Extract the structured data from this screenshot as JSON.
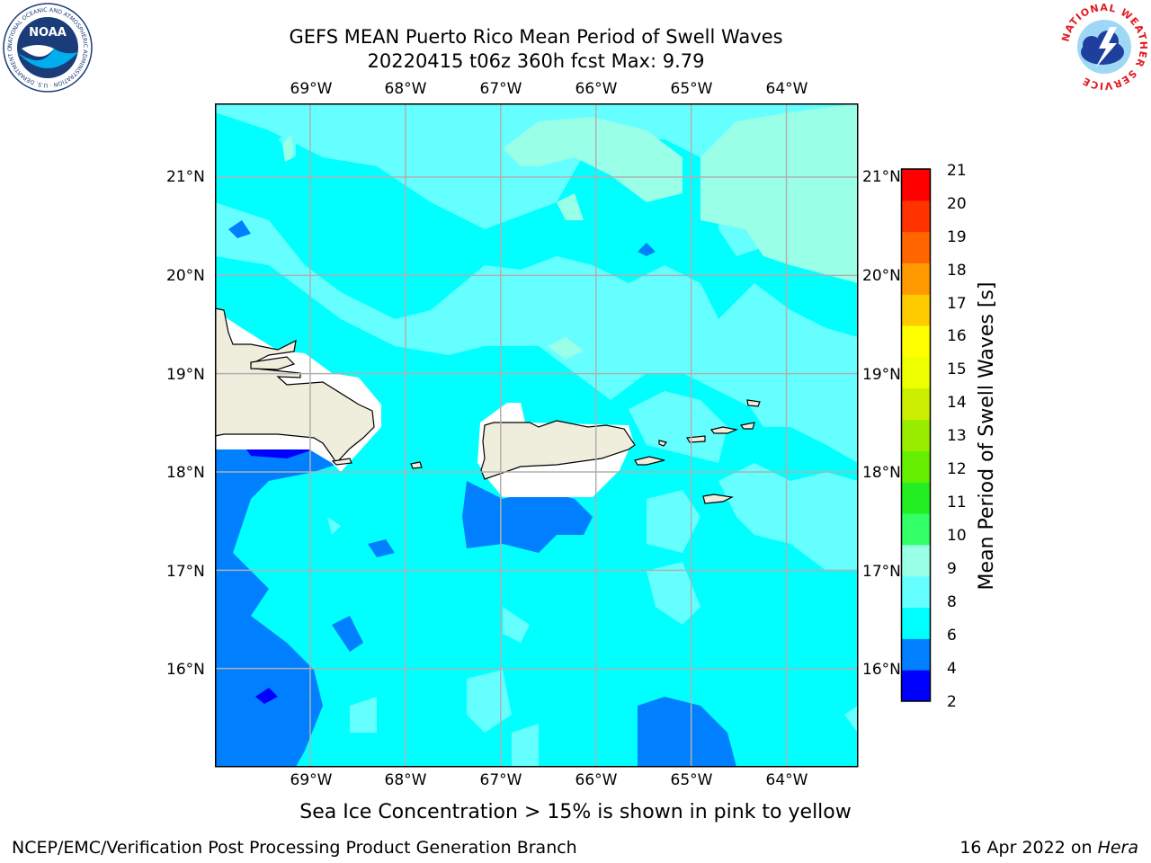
{
  "title": {
    "line1": "GEFS MEAN Puerto Rico Mean Period of Swell Waves",
    "line2": "20220415 t06z 360h fcst   Max: 9.79"
  },
  "map": {
    "lon_ticks": [
      "69°W",
      "68°W",
      "67°W",
      "66°W",
      "65°W",
      "64°W"
    ],
    "lat_ticks": [
      "21°N",
      "20°N",
      "19°N",
      "18°N",
      "17°N",
      "16°N"
    ],
    "lon_range": [
      -70.0,
      -63.25
    ],
    "lat_range": [
      15.0,
      21.75
    ]
  },
  "colorbar": {
    "label": "Mean Period of Swell Waves [s]",
    "ticks": [
      "2",
      "4",
      "6",
      "8",
      "9",
      "10",
      "11",
      "12",
      "13",
      "14",
      "15",
      "16",
      "17",
      "18",
      "19",
      "20",
      "21"
    ],
    "colors": [
      "#0000ff",
      "#0080ff",
      "#00ffff",
      "#66ffff",
      "#99ffe6",
      "#33ff66",
      "#22ee22",
      "#66ee00",
      "#99ee00",
      "#ccee00",
      "#eeff00",
      "#ffff00",
      "#ffcc00",
      "#ff9900",
      "#ff6600",
      "#ff3300",
      "#ff0000"
    ]
  },
  "colors": {
    "ocean_base": "#00ffff",
    "ocean_light": "#66ffff",
    "ocean_lighter": "#99ffe6",
    "ocean_dark": "#0080ff",
    "ocean_darker": "#0000ff",
    "land": "#efeddb",
    "grid": "#b0b0b0"
  },
  "note": "Sea Ice Concentration > 15% is shown in pink to yellow",
  "footer": {
    "left": "NCEP/EMC/Verification Post Processing Product Generation Branch",
    "right_date": "16 Apr 2022 on ",
    "right_machine": "Hera"
  },
  "logos": {
    "noaa_text": "NOAA",
    "noaa_ring": "NATIONAL OCEANIC AND ATMOSPHERIC ADMINISTRATION · U.S. DEPARTMENT OF COMMERCE",
    "nws_ring": "NATIONAL WEATHER SERVICE"
  }
}
